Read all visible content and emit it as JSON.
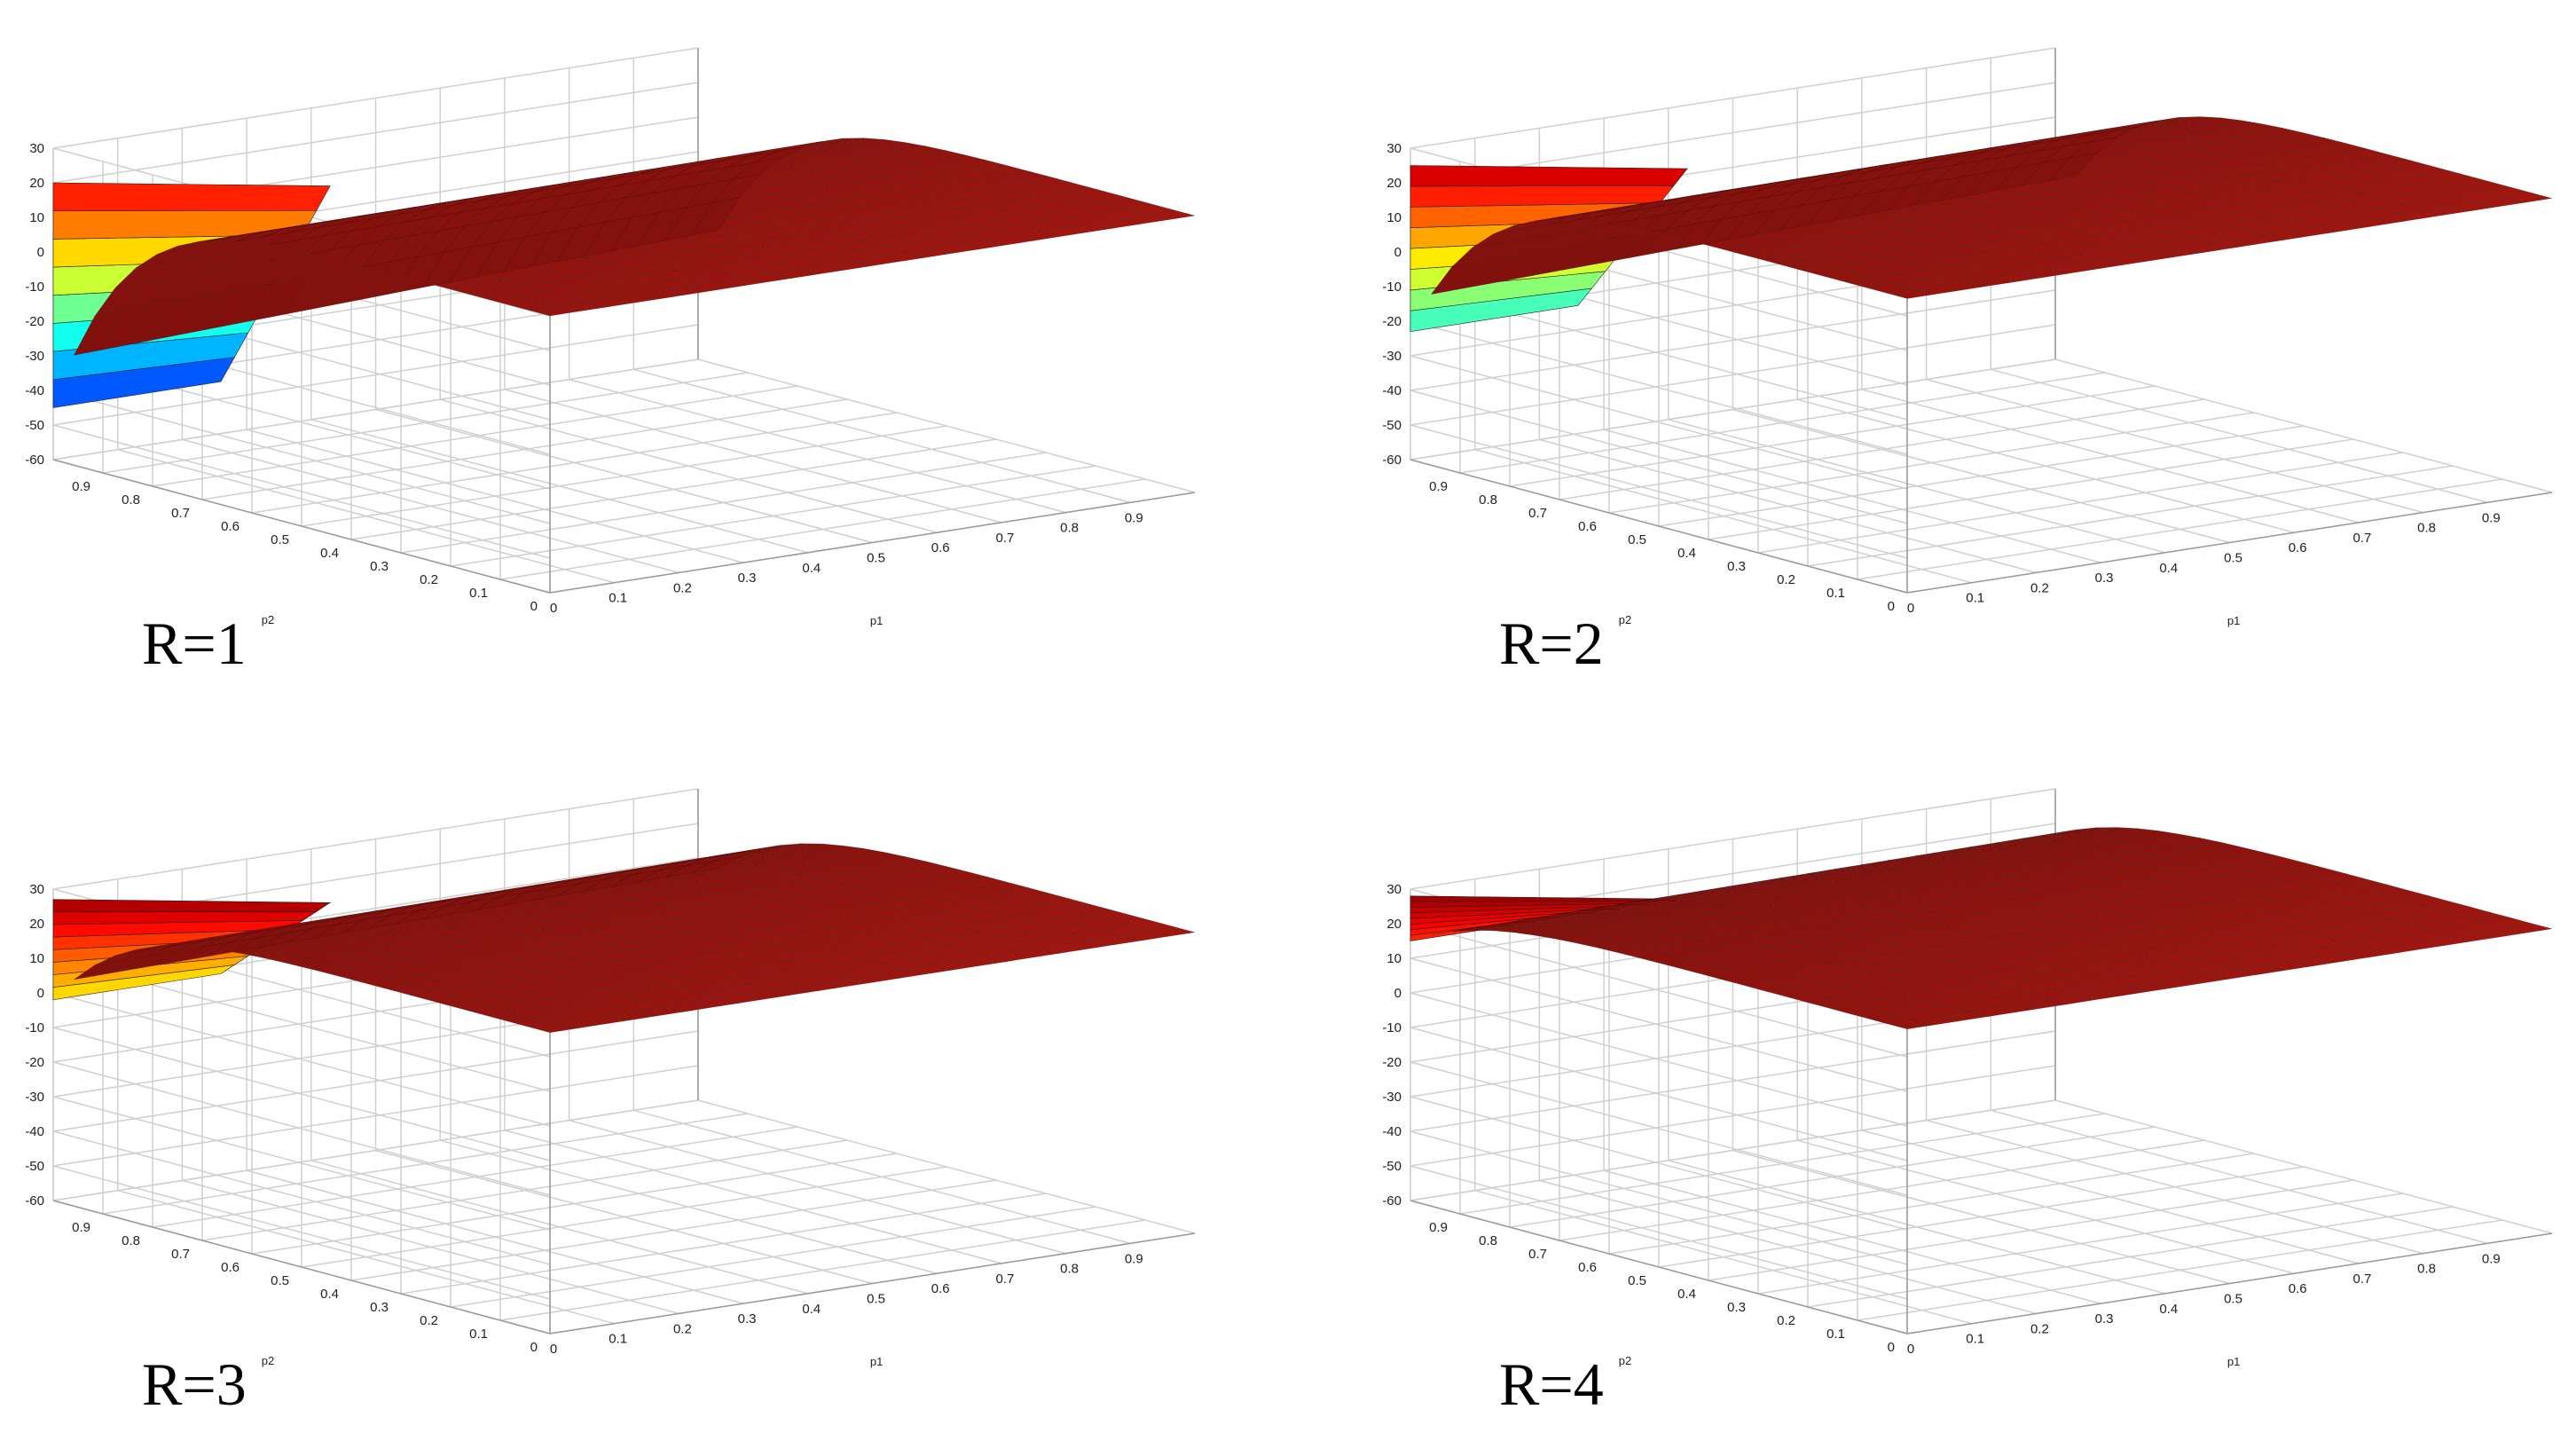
{
  "chart_data": [
    {
      "type": "surface",
      "panel_label": "R=1",
      "xlabel": "p1",
      "ylabel": "p2",
      "xticks": [
        "0",
        "0.1",
        "0.2",
        "0.3",
        "0.4",
        "0.5",
        "0.6",
        "0.7",
        "0.8",
        "0.9"
      ],
      "yticks": [
        "0",
        "0.1",
        "0.2",
        "0.3",
        "0.4",
        "0.5",
        "0.6",
        "0.7",
        "0.8",
        "0.9"
      ],
      "zticks": [
        "30",
        "20",
        "10",
        "0",
        "-10",
        "-20",
        "-30",
        "-40",
        "-50",
        "-60"
      ],
      "zlim": [
        -60,
        30
      ],
      "surface": {
        "plateau_z": 20,
        "min_z": -45,
        "colormap": "jet"
      }
    },
    {
      "type": "surface",
      "panel_label": "R=2",
      "xlabel": "p1",
      "ylabel": "p2",
      "xticks": [
        "0",
        "0.1",
        "0.2",
        "0.3",
        "0.4",
        "0.5",
        "0.6",
        "0.7",
        "0.8",
        "0.9"
      ],
      "yticks": [
        "0",
        "0.1",
        "0.2",
        "0.3",
        "0.4",
        "0.5",
        "0.6",
        "0.7",
        "0.8",
        "0.9"
      ],
      "zticks": [
        "30",
        "20",
        "10",
        "0",
        "-10",
        "-20",
        "-30",
        "-40",
        "-50",
        "-60"
      ],
      "zlim": [
        -60,
        30
      ],
      "surface": {
        "plateau_z": 25,
        "min_z": -23,
        "colormap": "jet"
      }
    },
    {
      "type": "surface",
      "panel_label": "R=3",
      "xlabel": "p1",
      "ylabel": "p2",
      "xticks": [
        "0",
        "0.1",
        "0.2",
        "0.3",
        "0.4",
        "0.5",
        "0.6",
        "0.7",
        "0.8",
        "0.9"
      ],
      "yticks": [
        "0",
        "0.1",
        "0.2",
        "0.3",
        "0.4",
        "0.5",
        "0.6",
        "0.7",
        "0.8",
        "0.9"
      ],
      "zticks": [
        "30",
        "20",
        "10",
        "0",
        "-10",
        "-20",
        "-30",
        "-40",
        "-50",
        "-60"
      ],
      "zlim": [
        -60,
        30
      ],
      "surface": {
        "plateau_z": 27,
        "min_z": -2,
        "colormap": "jet"
      }
    },
    {
      "type": "surface",
      "panel_label": "R=4",
      "xlabel": "p1",
      "ylabel": "p2",
      "xticks": [
        "0",
        "0.1",
        "0.2",
        "0.3",
        "0.4",
        "0.5",
        "0.6",
        "0.7",
        "0.8",
        "0.9"
      ],
      "yticks": [
        "0",
        "0.1",
        "0.2",
        "0.3",
        "0.4",
        "0.5",
        "0.6",
        "0.7",
        "0.8",
        "0.9"
      ],
      "zticks": [
        "30",
        "20",
        "10",
        "0",
        "-10",
        "-20",
        "-30",
        "-40",
        "-50",
        "-60"
      ],
      "zlim": [
        -60,
        30
      ],
      "surface": {
        "plateau_z": 28,
        "min_z": 15,
        "colormap": "jet"
      }
    }
  ]
}
